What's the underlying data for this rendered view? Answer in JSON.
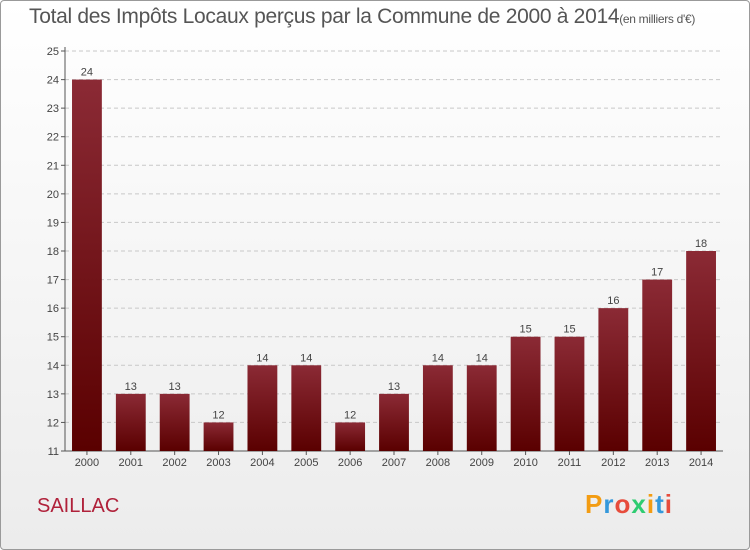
{
  "chart_data": {
    "type": "bar",
    "title": "Total des Impôts Locaux perçus par la Commune de 2000 à 2014",
    "unit_label": "(en milliers d'€)",
    "xlabel": "",
    "ylabel": "",
    "categories": [
      "2000",
      "2001",
      "2002",
      "2003",
      "2004",
      "2005",
      "2006",
      "2007",
      "2008",
      "2009",
      "2010",
      "2011",
      "2012",
      "2013",
      "2014"
    ],
    "values": [
      24,
      13,
      13,
      12,
      14,
      14,
      12,
      13,
      14,
      14,
      15,
      15,
      16,
      17,
      18
    ],
    "ylim": [
      11,
      25
    ],
    "yticks": [
      11,
      12,
      13,
      14,
      15,
      16,
      17,
      18,
      19,
      20,
      21,
      22,
      23,
      24,
      25
    ],
    "grid": true,
    "bar_color_top": "#8b2a35",
    "bar_color_bottom": "#5a0000"
  },
  "footer": {
    "commune": "SAILLAC",
    "logo": [
      "P",
      "r",
      "o",
      "x",
      "i",
      "t",
      "i"
    ]
  }
}
